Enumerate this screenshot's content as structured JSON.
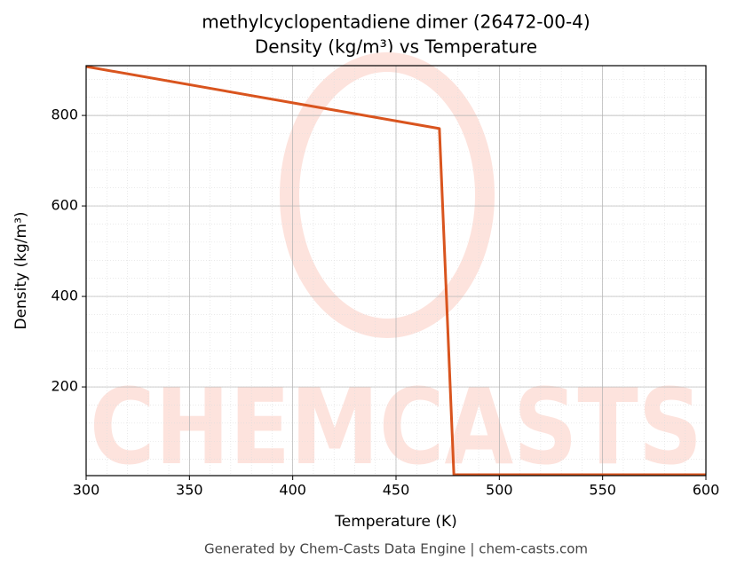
{
  "chart_data": {
    "type": "line",
    "title": "methylcyclopentadiene dimer (26472-00-4)",
    "subtitle": "Density (kg/m³) vs Temperature",
    "xlabel": "Temperature (K)",
    "ylabel": "Density (kg/m³)",
    "footer": "Generated by Chem-Casts Data Engine | chem-casts.com",
    "watermark": "CHEMCASTS",
    "x": [
      300,
      471,
      478,
      600
    ],
    "series": [
      {
        "name": "Density",
        "color": "#d9541e",
        "values": [
          908,
          771,
          6,
          6
        ]
      }
    ],
    "xlim": [
      300,
      600
    ],
    "xticks": [
      300,
      350,
      400,
      450,
      500,
      550,
      600
    ],
    "ylim": [
      4,
      910
    ],
    "yticks": [
      200,
      400,
      600,
      800
    ],
    "grid": true,
    "minor_grid": true
  }
}
